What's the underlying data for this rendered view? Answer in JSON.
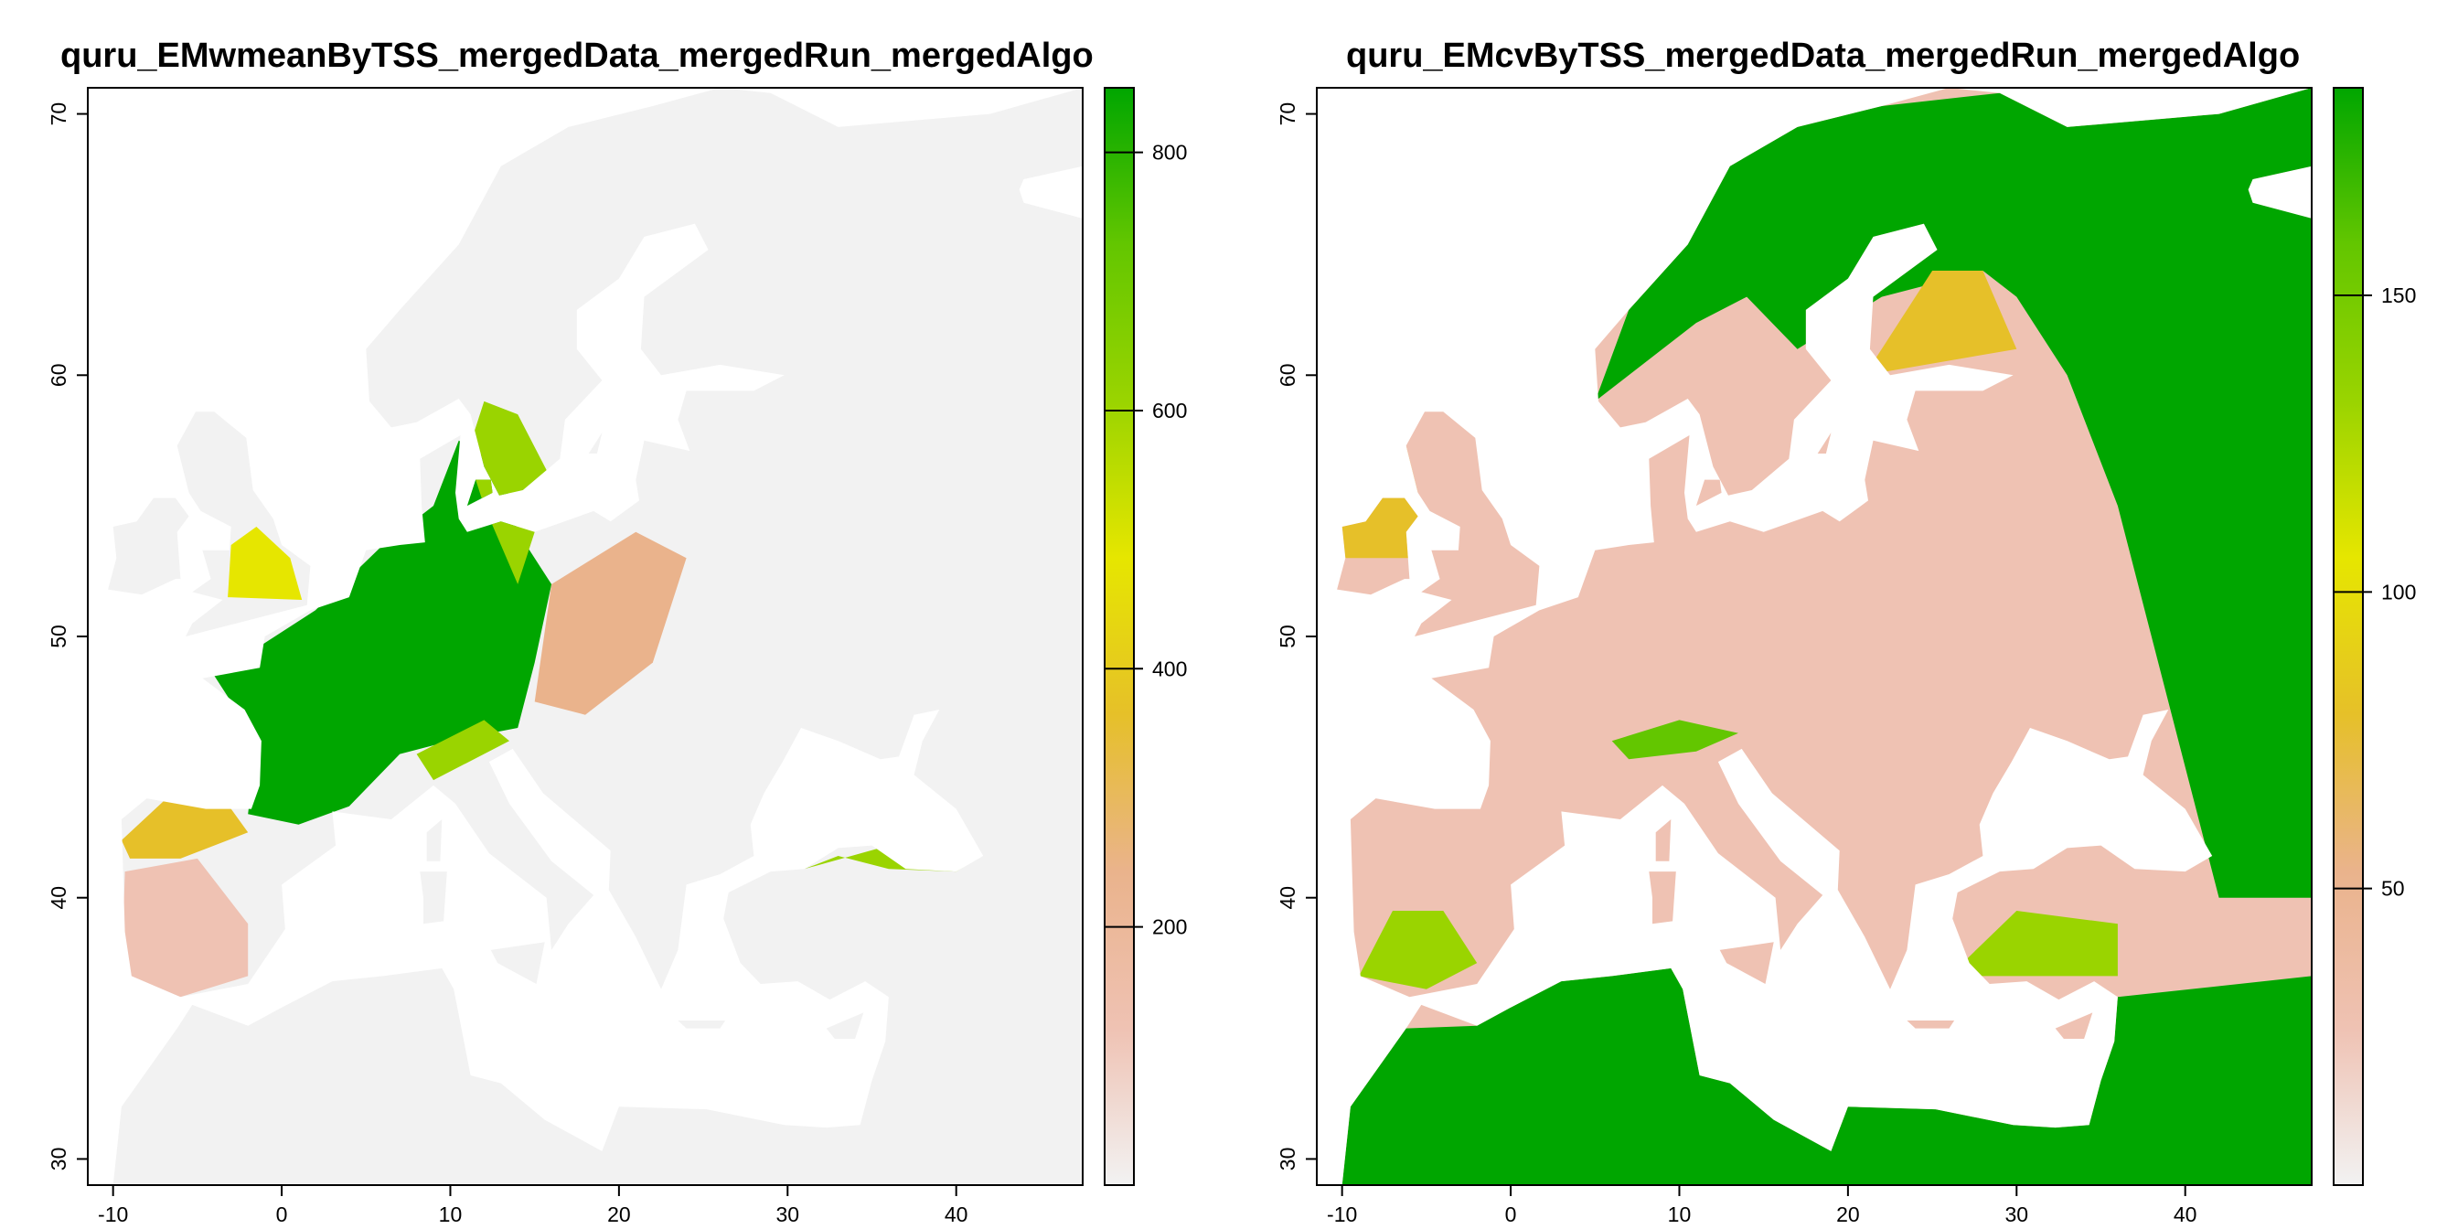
{
  "left": {
    "title": "quru_EMwmeanByTSS_mergedData_mergedRun_mergedAlgo",
    "x_ticks": [
      "-10",
      "0",
      "10",
      "20",
      "30",
      "40"
    ],
    "y_ticks": [
      "30",
      "40",
      "50",
      "60",
      "70"
    ],
    "legend_ticks": [
      "200",
      "400",
      "600",
      "800"
    ],
    "legend_range": [
      0,
      850
    ]
  },
  "right": {
    "title": "quru_EMcvByTSS_mergedData_mergedRun_mergedAlgo",
    "x_ticks": [
      "-10",
      "0",
      "10",
      "20",
      "30",
      "40"
    ],
    "y_ticks": [
      "30",
      "40",
      "50",
      "60",
      "70"
    ],
    "legend_ticks": [
      "50",
      "100",
      "150"
    ],
    "legend_range": [
      0,
      185
    ]
  },
  "colors": {
    "palette": [
      "#f2f2f2",
      "#efc2b3",
      "#eab38c",
      "#e6c029",
      "#e6e600",
      "#9ad400",
      "#63c600",
      "#00a600"
    ],
    "ocean": "#ffffff"
  }
}
